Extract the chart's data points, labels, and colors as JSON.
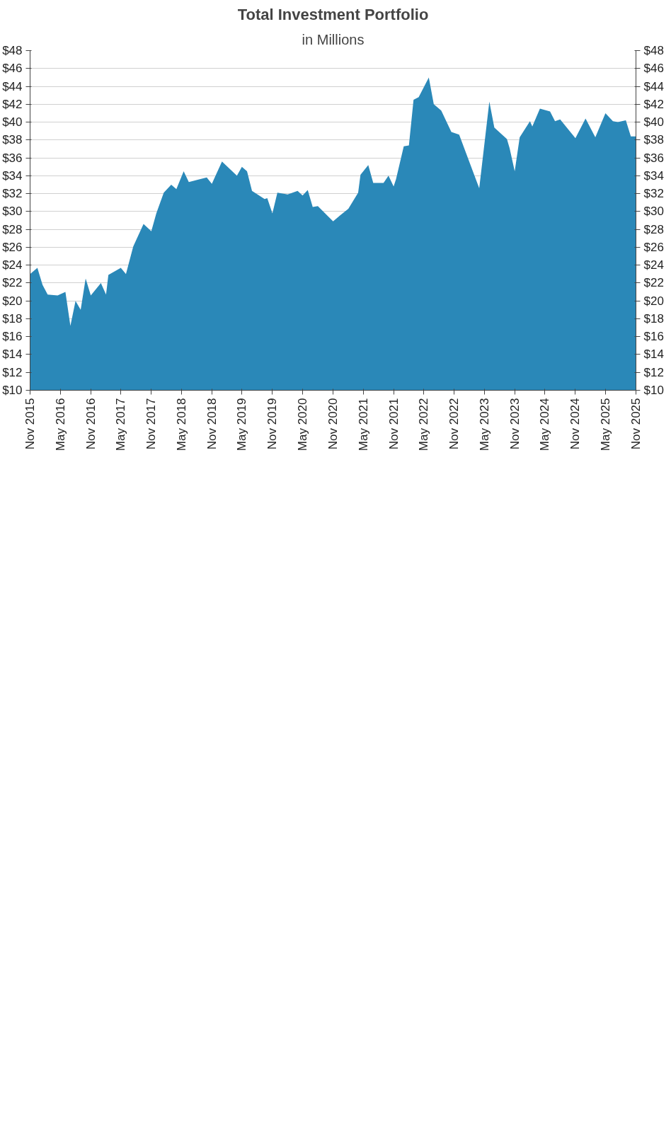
{
  "chart_data": {
    "type": "area",
    "title": "Total Investment Portfolio",
    "subtitle": "in Millions",
    "x": [
      "2015-11-01",
      "2015-12-15",
      "2016-01-15",
      "2016-02-15",
      "2016-04-15",
      "2016-06-01",
      "2016-07-01",
      "2016-08-01",
      "2016-09-01",
      "2016-10-01",
      "2016-11-01",
      "2017-01-01",
      "2017-02-01",
      "2017-02-15",
      "2017-05-01",
      "2017-06-01",
      "2017-07-15",
      "2017-09-15",
      "2017-11-01",
      "2017-12-01",
      "2018-01-15",
      "2018-03-01",
      "2018-04-01",
      "2018-05-15",
      "2018-06-15",
      "2018-10-01",
      "2018-11-01",
      "2019-01-01",
      "2019-04-01",
      "2019-05-01",
      "2019-06-01",
      "2019-07-01",
      "2019-09-15",
      "2019-10-01",
      "2019-11-01",
      "2019-12-01",
      "2020-02-01",
      "2020-04-01",
      "2020-05-01",
      "2020-06-01",
      "2020-07-01",
      "2020-08-01",
      "2020-11-01",
      "2020-12-15",
      "2021-02-01",
      "2021-04-01",
      "2021-04-15",
      "2021-06-01",
      "2021-07-01",
      "2021-09-01",
      "2021-10-01",
      "2021-11-01",
      "2021-11-15",
      "2022-01-01",
      "2022-02-01",
      "2022-03-01",
      "2022-04-01",
      "2022-06-01",
      "2022-07-01",
      "2022-08-15",
      "2022-10-15",
      "2022-12-01",
      "2023-04-01",
      "2023-06-01",
      "2023-07-01",
      "2023-09-15",
      "2023-10-01",
      "2023-11-01",
      "2023-12-01",
      "2024-02-01",
      "2024-02-15",
      "2024-04-01",
      "2024-06-01",
      "2024-07-01",
      "2024-08-01",
      "2024-11-01",
      "2025-01-01",
      "2025-03-01",
      "2025-05-01",
      "2025-06-15",
      "2025-07-15",
      "2025-09-01",
      "2025-10-01",
      "2025-11-01"
    ],
    "series": [
      {
        "color": "#2a88b8",
        "values": [
          23.0,
          23.7,
          21.8,
          20.7,
          20.6,
          21.0,
          17.2,
          20.0,
          19.0,
          22.5,
          20.6,
          22.0,
          20.7,
          22.9,
          23.7,
          23.0,
          26.1,
          28.6,
          27.8,
          29.8,
          32.1,
          33.0,
          32.5,
          34.5,
          33.3,
          33.8,
          33.1,
          35.6,
          34.0,
          35.0,
          34.5,
          32.3,
          31.4,
          31.5,
          29.8,
          32.1,
          31.9,
          32.3,
          31.8,
          32.4,
          30.5,
          30.6,
          28.9,
          29.6,
          30.3,
          32.1,
          34.1,
          35.2,
          33.2,
          33.2,
          34.0,
          32.8,
          33.6,
          37.3,
          37.4,
          42.5,
          42.8,
          45.0,
          42.0,
          41.3,
          38.9,
          38.6,
          32.6,
          42.3,
          39.4,
          38.1,
          37.1,
          34.5,
          38.3,
          40.1,
          39.5,
          41.5,
          41.2,
          40.1,
          40.3,
          38.2,
          40.4,
          38.3,
          41.0,
          40.1,
          40.0,
          40.2,
          38.4,
          38.4
        ]
      }
    ],
    "xlim": [
      "2015-11-01",
      "2025-11-01"
    ],
    "xticks": [
      {
        "value": "2015-11",
        "label": "Nov 2015"
      },
      {
        "value": "2016-05",
        "label": "May 2016"
      },
      {
        "value": "2016-11",
        "label": "Nov 2016"
      },
      {
        "value": "2017-05",
        "label": "May 2017"
      },
      {
        "value": "2017-11",
        "label": "Nov 2017"
      },
      {
        "value": "2018-05",
        "label": "May 2018"
      },
      {
        "value": "2018-11",
        "label": "Nov 2018"
      },
      {
        "value": "2019-05",
        "label": "May 2019"
      },
      {
        "value": "2019-11",
        "label": "Nov 2019"
      },
      {
        "value": "2020-05",
        "label": "May 2020"
      },
      {
        "value": "2020-11",
        "label": "Nov 2020"
      },
      {
        "value": "2021-05",
        "label": "May 2021"
      },
      {
        "value": "2021-11",
        "label": "Nov 2021"
      },
      {
        "value": "2022-05",
        "label": "May 2022"
      },
      {
        "value": "2022-11",
        "label": "Nov 2022"
      },
      {
        "value": "2023-05",
        "label": "May 2023"
      },
      {
        "value": "2023-11",
        "label": "Nov 2023"
      },
      {
        "value": "2024-05",
        "label": "May 2024"
      },
      {
        "value": "2024-11",
        "label": "Nov 2024"
      },
      {
        "value": "2025-05",
        "label": "May 2025"
      },
      {
        "value": "2025-11",
        "label": "Nov 2025"
      }
    ],
    "ylim": [
      10,
      48
    ],
    "yticks": [
      {
        "value": 10,
        "label": "$10"
      },
      {
        "value": 12,
        "label": "$12"
      },
      {
        "value": 14,
        "label": "$14"
      },
      {
        "value": 16,
        "label": "$16"
      },
      {
        "value": 18,
        "label": "$18"
      },
      {
        "value": 20,
        "label": "$20"
      },
      {
        "value": 22,
        "label": "$22"
      },
      {
        "value": 24,
        "label": "$24"
      },
      {
        "value": 26,
        "label": "$26"
      },
      {
        "value": 28,
        "label": "$28"
      },
      {
        "value": 30,
        "label": "$30"
      },
      {
        "value": 32,
        "label": "$32"
      },
      {
        "value": 34,
        "label": "$34"
      },
      {
        "value": 36,
        "label": "$36"
      },
      {
        "value": 38,
        "label": "$38"
      },
      {
        "value": 40,
        "label": "$40"
      },
      {
        "value": 42,
        "label": "$42"
      },
      {
        "value": 44,
        "label": "$44"
      },
      {
        "value": 46,
        "label": "$46"
      },
      {
        "value": 48,
        "label": "$48"
      }
    ],
    "y2lim": [
      10,
      48
    ],
    "y2ticks": [
      {
        "value": 10,
        "label": "$10"
      },
      {
        "value": 12,
        "label": "$12"
      },
      {
        "value": 14,
        "label": "$14"
      },
      {
        "value": 16,
        "label": "$16"
      },
      {
        "value": 18,
        "label": "$18"
      },
      {
        "value": 20,
        "label": "$20"
      },
      {
        "value": 22,
        "label": "$22"
      },
      {
        "value": 24,
        "label": "$24"
      },
      {
        "value": 26,
        "label": "$26"
      },
      {
        "value": 28,
        "label": "$28"
      },
      {
        "value": 30,
        "label": "$30"
      },
      {
        "value": 32,
        "label": "$32"
      },
      {
        "value": 34,
        "label": "$34"
      },
      {
        "value": 36,
        "label": "$36"
      },
      {
        "value": 38,
        "label": "$38"
      },
      {
        "value": 40,
        "label": "$40"
      },
      {
        "value": 42,
        "label": "$42"
      },
      {
        "value": 44,
        "label": "$44"
      },
      {
        "value": 46,
        "label": "$46"
      },
      {
        "value": 48,
        "label": "$48"
      }
    ],
    "grid": "y"
  }
}
